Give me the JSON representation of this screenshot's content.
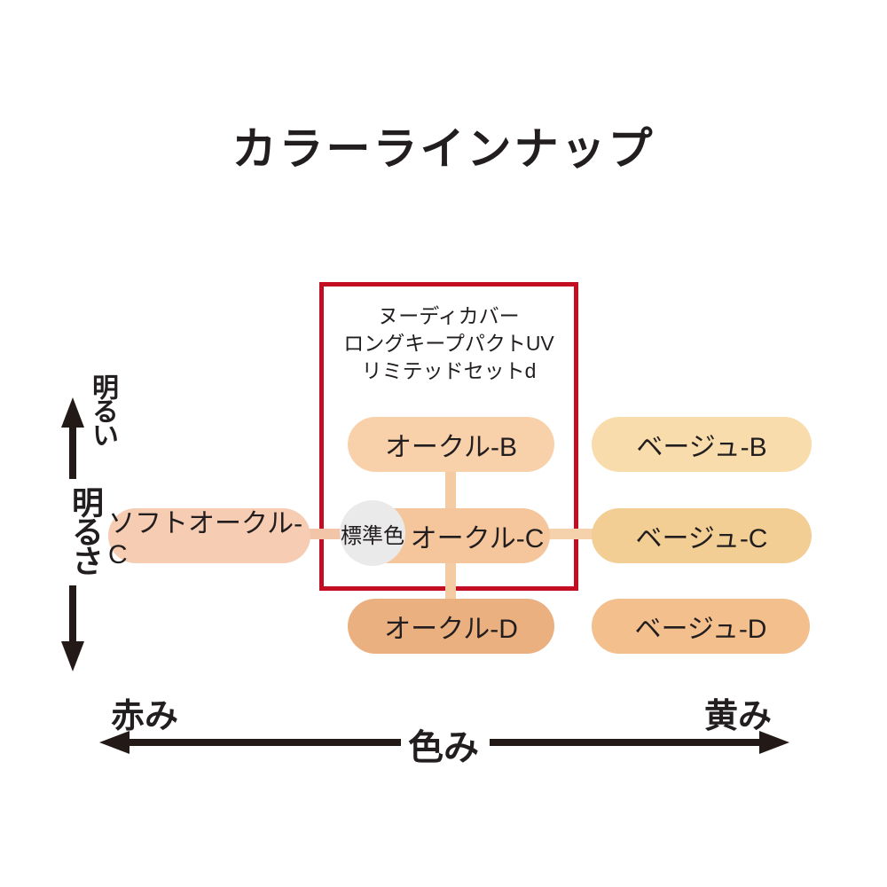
{
  "title": "カラーラインナップ",
  "colors": {
    "background": "#ffffff",
    "box_border": "#c30d23",
    "text": "#221e1f",
    "axis": "#231916",
    "standard_circle": "#eaeaeb",
    "connector_vertical": "#f5cba4",
    "connector_left": "#f2c4a8",
    "connector_right": "#f6d2ac"
  },
  "product_box": {
    "line1": "ヌーディカバー",
    "line2": "ロングキープパクトUV",
    "line3": "リミテッドセットd"
  },
  "standard_color_label": "標準色",
  "pills": {
    "ochre_b": {
      "label": "オークル-B",
      "color": "#f8d1aa"
    },
    "beige_b": {
      "label": "ベージュ-B",
      "color": "#f8dcac"
    },
    "soft_ochre_c": {
      "label": "ソフトオークル-C",
      "color": "#f6ccb2"
    },
    "ochre_c": {
      "label": "オークル-C",
      "color": "#f5c69b",
      "note": "標準色"
    },
    "beige_c": {
      "label": "ベージュ-C",
      "color": "#f2cd94"
    },
    "ochre_d": {
      "label": "オークル-D",
      "color": "#ebb080"
    },
    "beige_d": {
      "label": "ベージュ-D",
      "color": "#f2bf8d"
    }
  },
  "axes": {
    "vertical": {
      "title": "明るさ",
      "top_label": "明るい"
    },
    "horizontal": {
      "title": "色み",
      "left_label": "赤み",
      "right_label": "黄み"
    }
  }
}
